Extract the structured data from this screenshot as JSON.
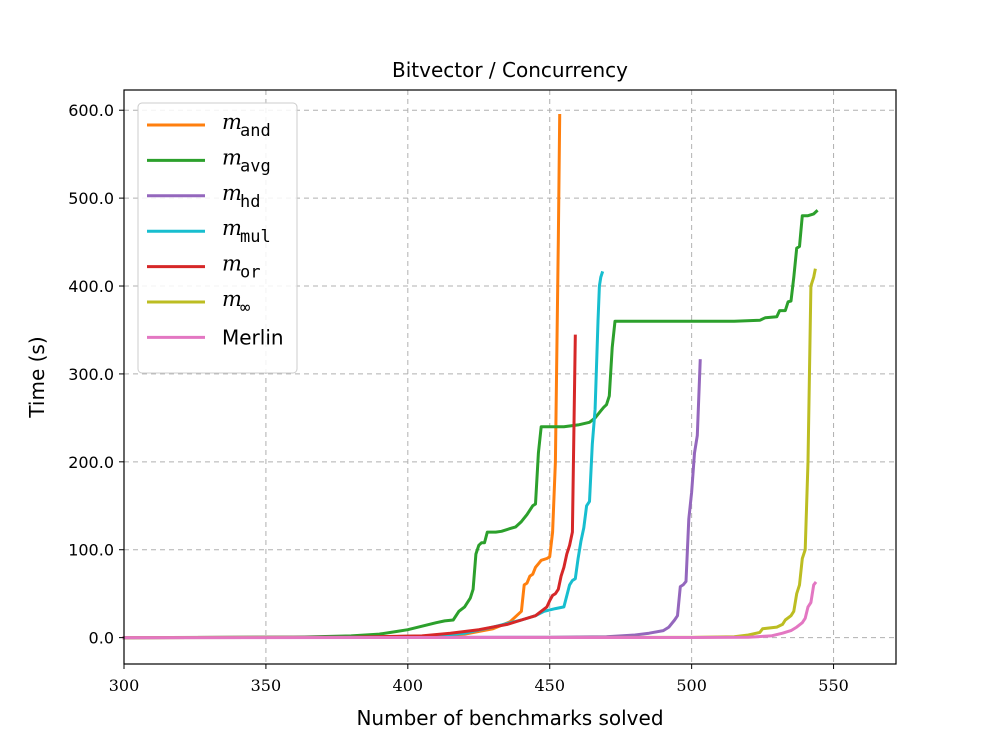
{
  "chart_data": {
    "type": "line",
    "title": "Bitvector / Concurrency",
    "xlabel": "Number of benchmarks solved",
    "ylabel": "Time (s)",
    "xlim": [
      300,
      572
    ],
    "ylim": [
      -30,
      623
    ],
    "xticks": [
      300,
      350,
      400,
      450,
      500,
      550
    ],
    "xtick_labels": [
      "300",
      "350",
      "400",
      "450",
      "500",
      "550"
    ],
    "yticks": [
      0,
      100,
      200,
      300,
      400,
      500,
      600
    ],
    "ytick_labels": [
      "0.0",
      "100.0",
      "200.0",
      "300.0",
      "400.0",
      "500.0",
      "600.0"
    ],
    "grid": true,
    "legend": "top-left",
    "series": [
      {
        "name": "m_and",
        "label_main": "m",
        "label_sub": "and",
        "color": "#ff7f0e",
        "points": [
          [
            300,
            0
          ],
          [
            380,
            0.5
          ],
          [
            410,
            2
          ],
          [
            420,
            4
          ],
          [
            430,
            10
          ],
          [
            436,
            18
          ],
          [
            440,
            30
          ],
          [
            441,
            60
          ],
          [
            442,
            62
          ],
          [
            443,
            70
          ],
          [
            444,
            72
          ],
          [
            445,
            80
          ],
          [
            446,
            84
          ],
          [
            447,
            88
          ],
          [
            449,
            90
          ],
          [
            450,
            92
          ],
          [
            451,
            120
          ],
          [
            452,
            200
          ],
          [
            453,
            450
          ],
          [
            453.5,
            594
          ]
        ]
      },
      {
        "name": "m_avg",
        "label_main": "m",
        "label_sub": "avg",
        "color": "#2ca02c",
        "points": [
          [
            300,
            0
          ],
          [
            360,
            0.5
          ],
          [
            380,
            2
          ],
          [
            390,
            4
          ],
          [
            396,
            7
          ],
          [
            400,
            9
          ],
          [
            405,
            13
          ],
          [
            410,
            17
          ],
          [
            413,
            19
          ],
          [
            416,
            20
          ],
          [
            418,
            30
          ],
          [
            420,
            35
          ],
          [
            422,
            45
          ],
          [
            423,
            55
          ],
          [
            424,
            95
          ],
          [
            425,
            105
          ],
          [
            426,
            108
          ],
          [
            427,
            108
          ],
          [
            428,
            120
          ],
          [
            431,
            120
          ],
          [
            433,
            121
          ],
          [
            436,
            124
          ],
          [
            438,
            126
          ],
          [
            440,
            132
          ],
          [
            442,
            140
          ],
          [
            444,
            150
          ],
          [
            445,
            152
          ],
          [
            446,
            210
          ],
          [
            447,
            240
          ],
          [
            450,
            240
          ],
          [
            455,
            240
          ],
          [
            460,
            242
          ],
          [
            464,
            245
          ],
          [
            466,
            250
          ],
          [
            468,
            258
          ],
          [
            469,
            262
          ],
          [
            470,
            265
          ],
          [
            471,
            275
          ],
          [
            472,
            330
          ],
          [
            473,
            360
          ],
          [
            480,
            360
          ],
          [
            500,
            360
          ],
          [
            515,
            360
          ],
          [
            524,
            361
          ],
          [
            526,
            364
          ],
          [
            530,
            365
          ],
          [
            531,
            372
          ],
          [
            533,
            372
          ],
          [
            534,
            382
          ],
          [
            535,
            383
          ],
          [
            536,
            410
          ],
          [
            537,
            443
          ],
          [
            538,
            445
          ],
          [
            539,
            480
          ],
          [
            541,
            480
          ],
          [
            543,
            482
          ],
          [
            544,
            485
          ]
        ]
      },
      {
        "name": "m_hd",
        "label_main": "m",
        "label_sub": "hd",
        "color": "#9467bd",
        "points": [
          [
            300,
            0
          ],
          [
            450,
            0.5
          ],
          [
            470,
            1
          ],
          [
            480,
            3
          ],
          [
            485,
            5
          ],
          [
            490,
            8
          ],
          [
            492,
            12
          ],
          [
            494,
            20
          ],
          [
            495,
            25
          ],
          [
            496,
            58
          ],
          [
            497,
            60
          ],
          [
            498,
            64
          ],
          [
            499,
            135
          ],
          [
            500,
            165
          ],
          [
            501,
            210
          ],
          [
            502,
            230
          ],
          [
            503,
            315
          ]
        ]
      },
      {
        "name": "m_mul",
        "label_main": "m",
        "label_sub": "mul",
        "color": "#17becf",
        "points": [
          [
            300,
            0
          ],
          [
            380,
            0.5
          ],
          [
            410,
            2
          ],
          [
            420,
            5
          ],
          [
            430,
            12
          ],
          [
            440,
            20
          ],
          [
            445,
            25
          ],
          [
            448,
            30
          ],
          [
            452,
            33
          ],
          [
            455,
            35
          ],
          [
            457,
            60
          ],
          [
            458,
            65
          ],
          [
            459,
            67
          ],
          [
            460,
            90
          ],
          [
            461,
            110
          ],
          [
            462,
            125
          ],
          [
            463,
            150
          ],
          [
            464,
            155
          ],
          [
            465,
            220
          ],
          [
            466,
            260
          ],
          [
            467,
            360
          ],
          [
            467.5,
            400
          ],
          [
            468,
            410
          ],
          [
            468.5,
            415
          ]
        ]
      },
      {
        "name": "m_or",
        "label_main": "m",
        "label_sub": "or",
        "color": "#d62728",
        "points": [
          [
            300,
            0
          ],
          [
            380,
            0.5
          ],
          [
            405,
            2
          ],
          [
            415,
            5
          ],
          [
            425,
            9
          ],
          [
            435,
            15
          ],
          [
            440,
            20
          ],
          [
            445,
            25
          ],
          [
            447,
            30
          ],
          [
            449,
            35
          ],
          [
            450,
            42
          ],
          [
            451,
            48
          ],
          [
            452,
            50
          ],
          [
            453,
            55
          ],
          [
            454,
            70
          ],
          [
            455,
            80
          ],
          [
            456,
            95
          ],
          [
            457,
            105
          ],
          [
            458,
            120
          ],
          [
            459,
            343
          ]
        ]
      },
      {
        "name": "m_inf",
        "label_main": "m",
        "label_sub": "∞",
        "color": "#bcbd22",
        "points": [
          [
            300,
            0
          ],
          [
            500,
            0.3
          ],
          [
            515,
            1
          ],
          [
            520,
            3
          ],
          [
            524,
            6
          ],
          [
            525,
            10
          ],
          [
            530,
            12
          ],
          [
            532,
            15
          ],
          [
            533,
            20
          ],
          [
            535,
            25
          ],
          [
            536,
            30
          ],
          [
            537,
            50
          ],
          [
            538,
            60
          ],
          [
            539,
            90
          ],
          [
            540,
            100
          ],
          [
            541,
            200
          ],
          [
            542,
            400
          ],
          [
            543,
            410
          ],
          [
            543.5,
            418
          ]
        ]
      },
      {
        "name": "Merlin",
        "label_main": "Merlin",
        "label_sub": "",
        "color": "#e377c2",
        "points": [
          [
            300,
            0
          ],
          [
            500,
            0.2
          ],
          [
            520,
            0.5
          ],
          [
            528,
            2
          ],
          [
            532,
            5
          ],
          [
            535,
            8
          ],
          [
            537,
            12
          ],
          [
            539,
            17
          ],
          [
            540,
            22
          ],
          [
            541,
            35
          ],
          [
            542,
            40
          ],
          [
            543,
            60
          ],
          [
            543.5,
            62
          ]
        ]
      }
    ]
  }
}
